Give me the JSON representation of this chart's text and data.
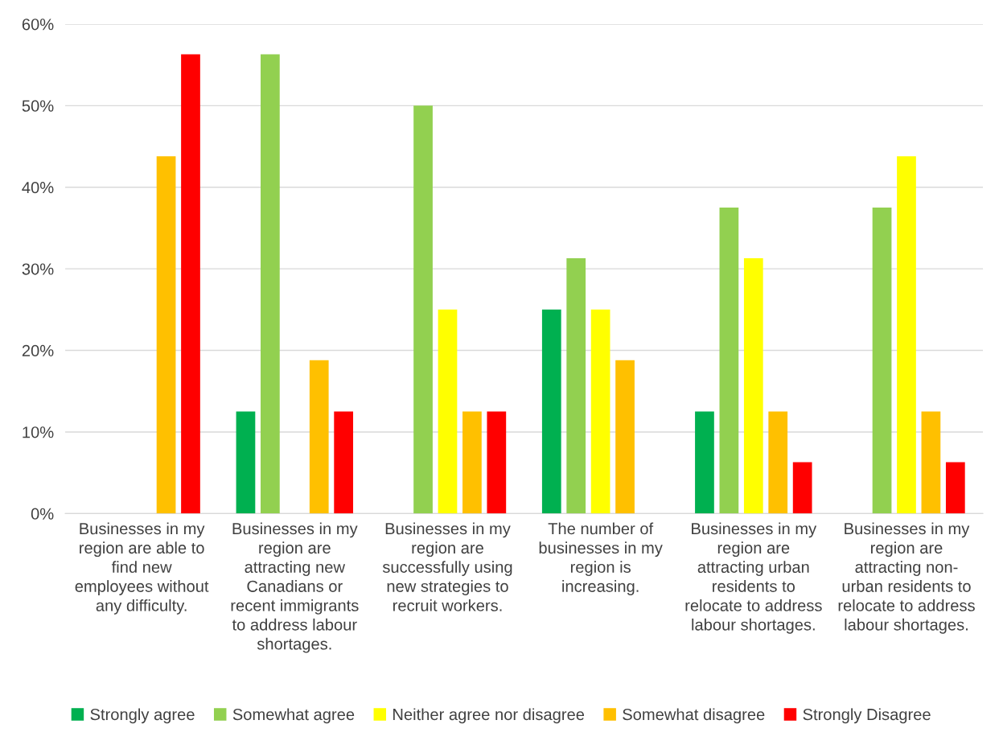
{
  "chart_data": {
    "type": "bar",
    "categories": [
      "Businesses in my\nregion are able to\nfind new\nemployees without\nany difficulty.",
      "Businesses in my\nregion are\nattracting new\nCanadians or\nrecent immigrants\nto address labour\nshortages.",
      "Businesses in my\nregion are\nsuccessfully using\nnew strategies to\nrecruit workers.",
      "The number of\nbusinesses in my\nregion is\nincreasing.",
      "Businesses in my\nregion are\nattracting urban\nresidents to\nrelocate to address\nlabour shortages.",
      "Businesses in my\nregion are\nattracting non-\nurban residents to\nrelocate to address\nlabour shortages."
    ],
    "series": [
      {
        "name": "Strongly agree",
        "color": "#00b050",
        "values": [
          0,
          12.5,
          0,
          25,
          12.5,
          0
        ]
      },
      {
        "name": "Somewhat agree",
        "color": "#92d050",
        "values": [
          0,
          56.3,
          50,
          31.3,
          37.5,
          37.5
        ]
      },
      {
        "name": "Neither agree nor disagree",
        "color": "#ffff00",
        "values": [
          0,
          0,
          25,
          25,
          31.3,
          43.8
        ]
      },
      {
        "name": "Somewhat disagree",
        "color": "#ffc000",
        "values": [
          43.8,
          18.8,
          12.5,
          18.8,
          12.5,
          12.5
        ]
      },
      {
        "name": "Strongly Disagree",
        "color": "#ff0000",
        "values": [
          56.3,
          12.5,
          12.5,
          0,
          6.3,
          6.3
        ]
      }
    ],
    "ylim": [
      0,
      60
    ],
    "yticks": [
      {
        "value": 0,
        "label": "0%"
      },
      {
        "value": 10,
        "label": "10%"
      },
      {
        "value": 20,
        "label": "20%"
      },
      {
        "value": 30,
        "label": "30%"
      },
      {
        "value": 40,
        "label": "40%"
      },
      {
        "value": 50,
        "label": "50%"
      },
      {
        "value": 60,
        "label": "60%"
      }
    ],
    "grid": "y",
    "legend": "bottom"
  }
}
